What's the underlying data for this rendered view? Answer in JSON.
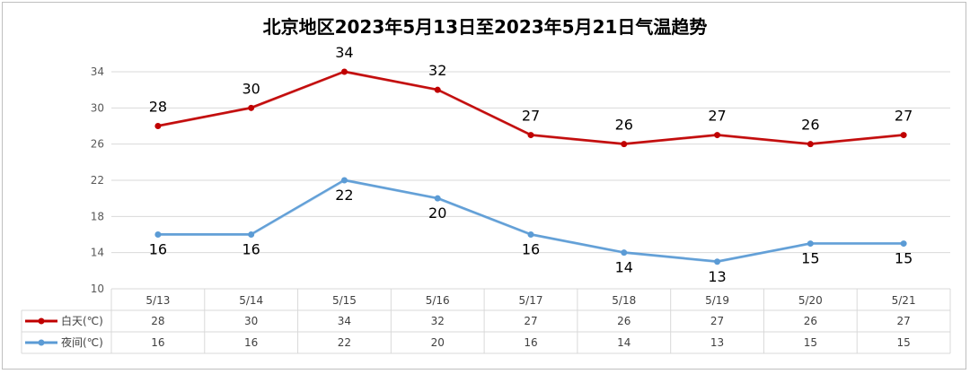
{
  "chart_data": {
    "type": "line",
    "title": "北京地区2023年5月13日至2023年5月21日气温趋势",
    "categories": [
      "5/13",
      "5/14",
      "5/15",
      "5/16",
      "5/17",
      "5/18",
      "5/19",
      "5/20",
      "5/21"
    ],
    "ylim": [
      10,
      34
    ],
    "yticks": [
      10,
      14,
      18,
      22,
      26,
      30,
      34
    ],
    "grid": true,
    "legend": "data-table",
    "series": [
      {
        "name": "白天(℃)",
        "color": "#c00000",
        "values": [
          28,
          30,
          34,
          32,
          27,
          26,
          27,
          26,
          27
        ],
        "label_position": "above"
      },
      {
        "name": "夜间(℃)",
        "color": "#5b9bd5",
        "values": [
          16,
          16,
          22,
          20,
          16,
          14,
          13,
          15,
          15
        ],
        "label_position": "below"
      }
    ]
  }
}
